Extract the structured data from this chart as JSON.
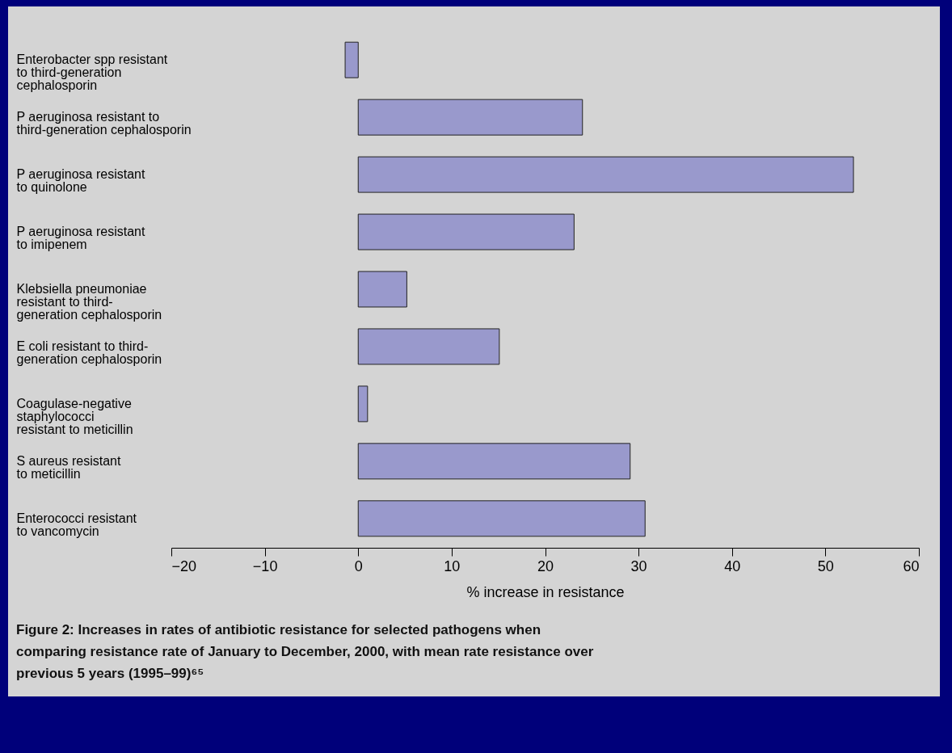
{
  "chart_data": {
    "type": "bar",
    "orientation": "horizontal",
    "xlabel": "% increase in resistance",
    "categories": [
      "Enterobacter spp resistant\nto third-generation\ncephalosporin",
      "P aeruginosa resistant to\nthird-generation cephalosporin",
      "P aeruginosa resistant\nto quinolone",
      "P aeruginosa resistant\nto imipenem",
      "Klebsiella pneumoniae\nresistant to third-\ngeneration cephalosporin",
      "E coli resistant to third-\ngeneration cephalosporin",
      "Coagulase-negative\nstaphylococci\nresistant to meticillin",
      "S aureus resistant\nto meticillin",
      "Enterococci resistant\nto vancomycin"
    ],
    "values": [
      -1.4,
      24.0,
      53.0,
      23.1,
      5.2,
      15.1,
      1.0,
      29.1,
      30.7
    ],
    "color": "#9999cc",
    "xlim": [
      -20,
      60
    ],
    "xticks": [
      {
        "value": -20,
        "label": "−20"
      },
      {
        "value": -10,
        "label": "−10"
      },
      0,
      10,
      20,
      30,
      40,
      50,
      60
    ],
    "grid": false,
    "annotations": [
      "Figure 2: Increases in rates of antibiotic resistance for selected pathogens when comparing resistance rate of January to December, 2000, with mean rate resistance over previous 5 years (1995–99)⁶⁵"
    ]
  }
}
